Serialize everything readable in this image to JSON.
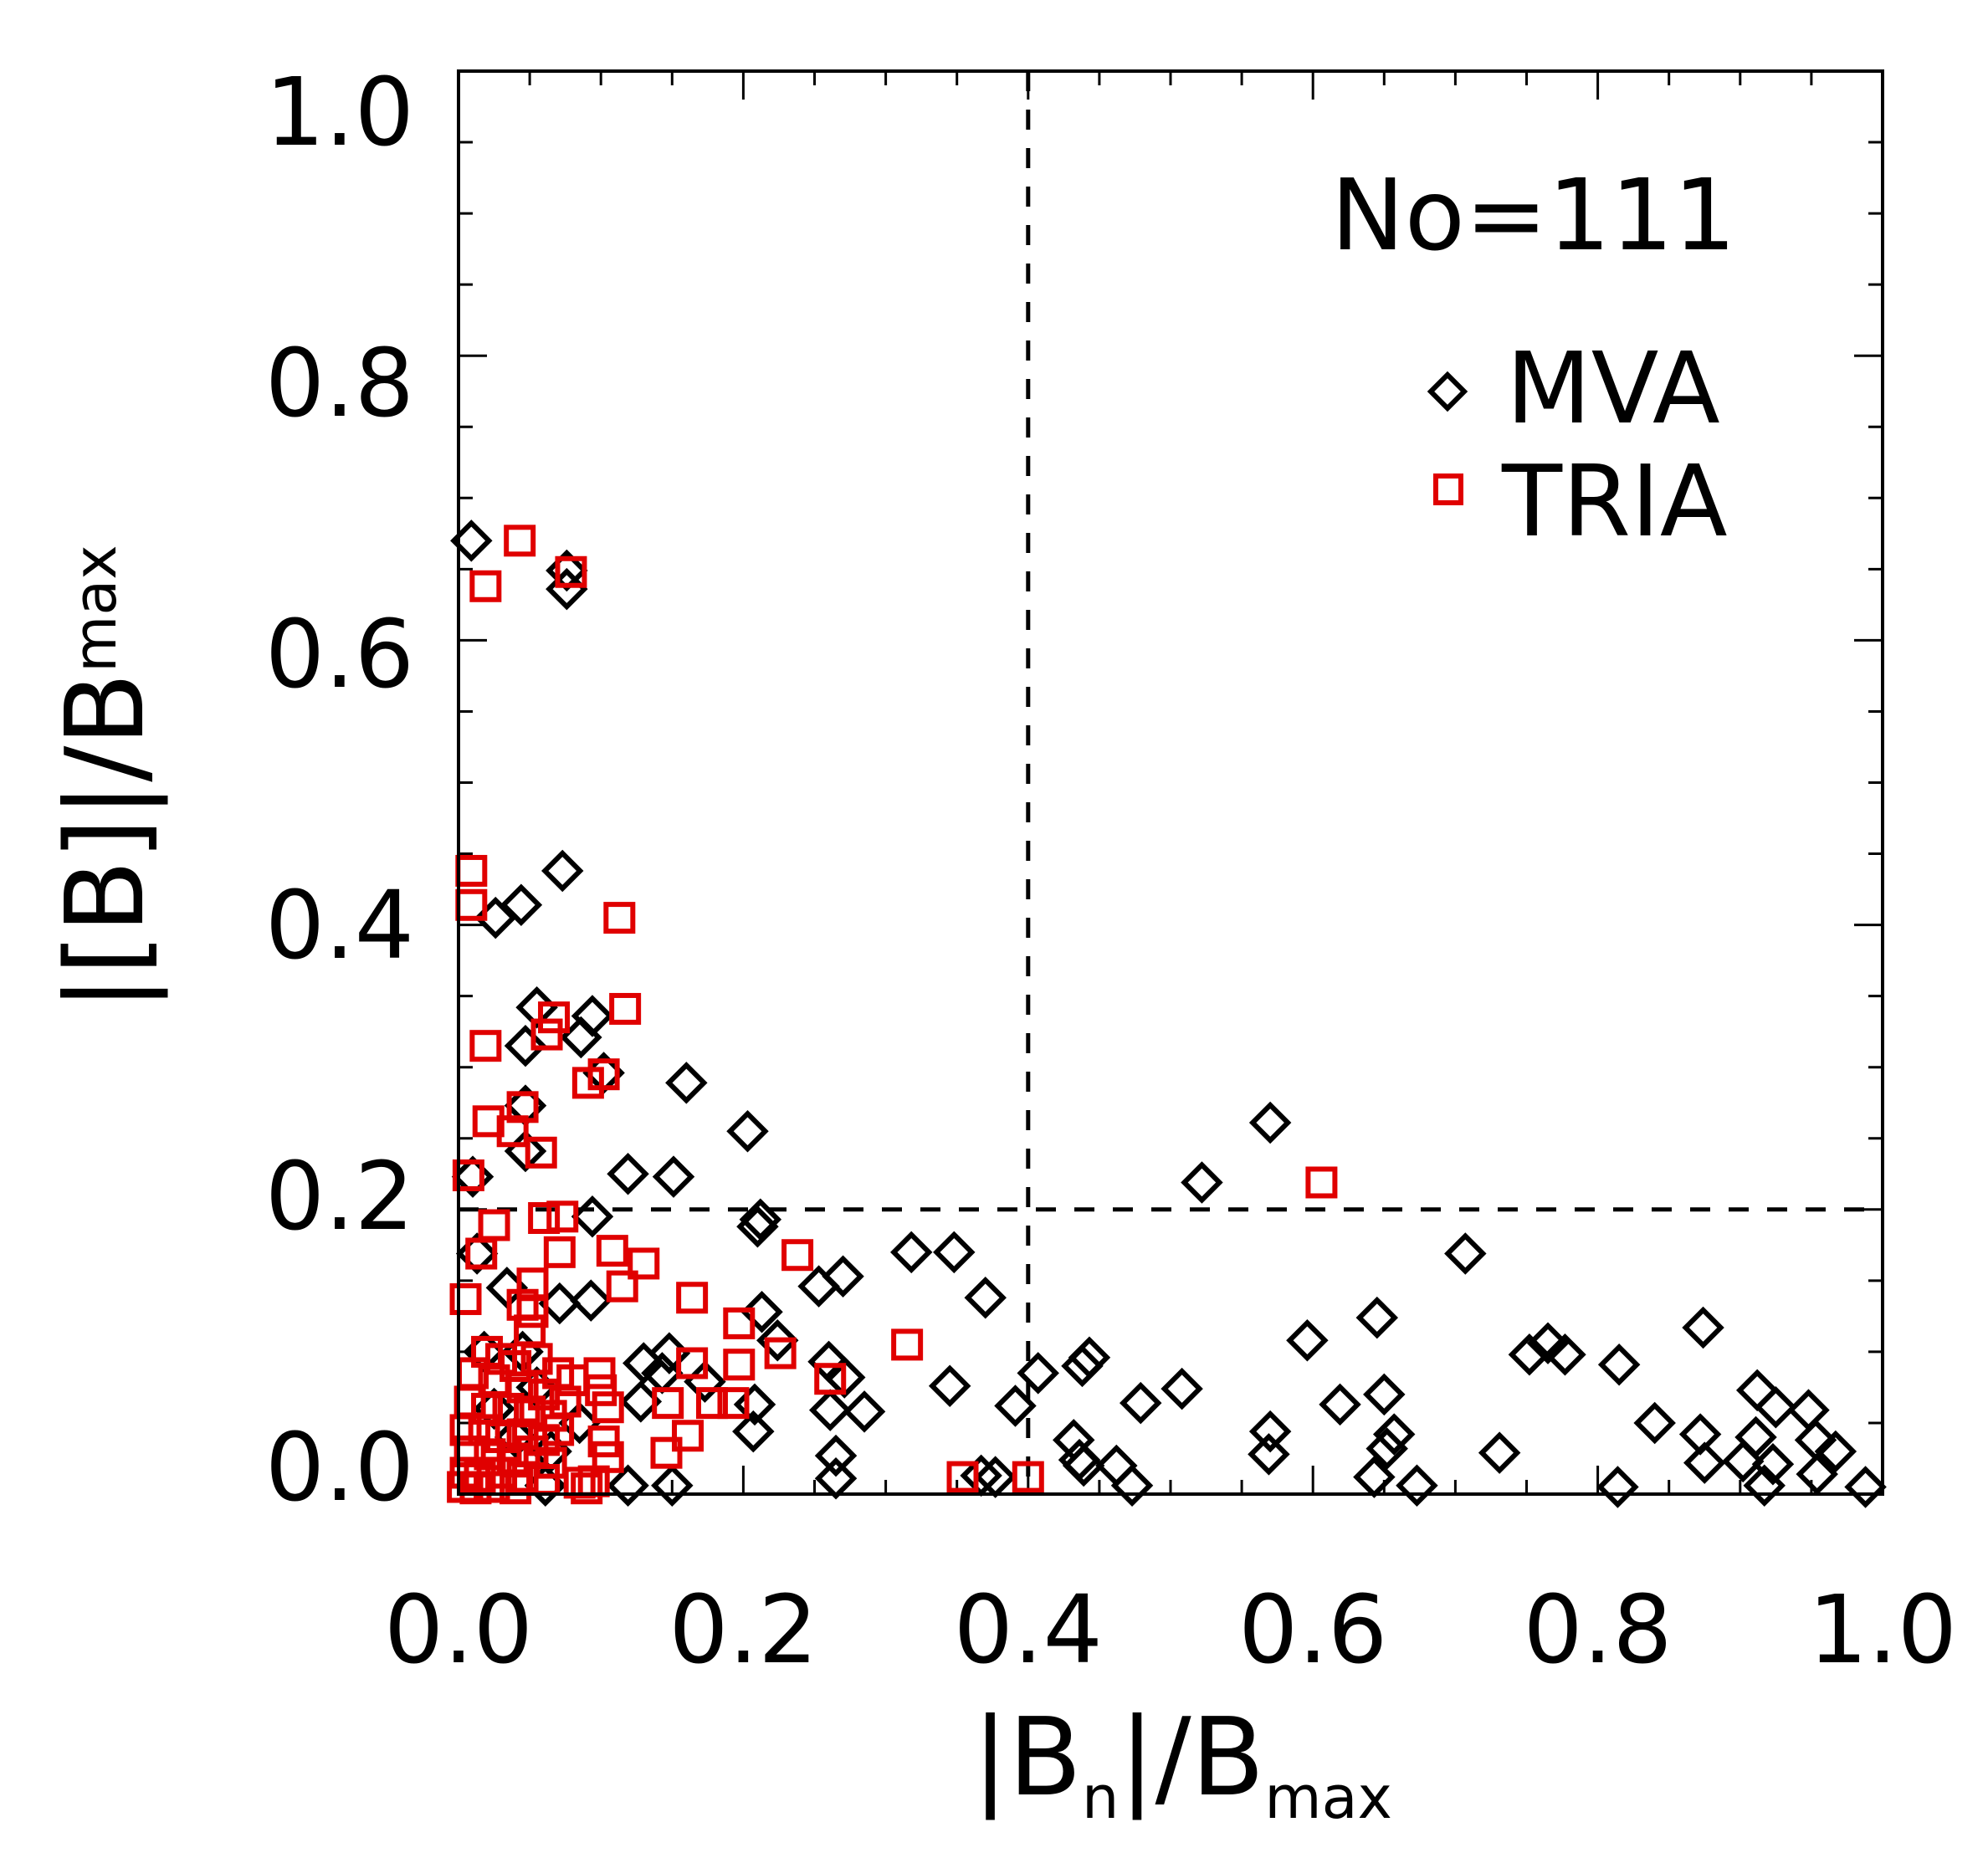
{
  "chart_data": {
    "type": "scatter",
    "title": "",
    "xlabel": "|B_n|/B_max",
    "xlabel_parts": {
      "pre": "|B",
      "sub1": "n",
      "mid": "|/B",
      "sub2": "max"
    },
    "ylabel": "|[B]|/B_max",
    "ylabel_parts": {
      "pre": "|[B]|/B",
      "sub": "max"
    },
    "xlim": [
      0.0,
      1.0
    ],
    "ylim": [
      0.0,
      1.0
    ],
    "xticks": [
      "0.0",
      "0.2",
      "0.4",
      "0.6",
      "0.8",
      "1.0"
    ],
    "yticks": [
      "0.0",
      "0.2",
      "0.4",
      "0.6",
      "0.8",
      "1.0"
    ],
    "xtick_values": [
      0.0,
      0.2,
      0.4,
      0.6,
      0.8,
      1.0
    ],
    "ytick_values": [
      0.0,
      0.2,
      0.4,
      0.6,
      0.8,
      1.0
    ],
    "minor_tick_step": 0.05,
    "grid": false,
    "reference_lines": [
      {
        "orientation": "vertical",
        "value": 0.4,
        "style": "dashed"
      },
      {
        "orientation": "horizontal",
        "value": 0.2,
        "style": "dashed",
        "from_x": 0.0,
        "to_x": 1.0
      }
    ],
    "annotation": "No=111",
    "legend": {
      "placement": "top-right",
      "entries": [
        {
          "label": "MVA",
          "marker": "diamond",
          "color": "#000000"
        },
        {
          "label": "TRIA",
          "marker": "square",
          "color": "#e00000"
        }
      ]
    },
    "series": [
      {
        "name": "MVA",
        "marker": "diamond",
        "color": "#000000",
        "points": [
          [
            0.009,
            0.67
          ],
          [
            0.076,
            0.649
          ],
          [
            0.076,
            0.636
          ],
          [
            0.073,
            0.438
          ],
          [
            0.044,
            0.414
          ],
          [
            0.026,
            0.405
          ],
          [
            0.055,
            0.342
          ],
          [
            0.094,
            0.336
          ],
          [
            0.086,
            0.321
          ],
          [
            0.047,
            0.315
          ],
          [
            0.102,
            0.296
          ],
          [
            0.16,
            0.289
          ],
          [
            0.047,
            0.273
          ],
          [
            0.047,
            0.241
          ],
          [
            0.203,
            0.255
          ],
          [
            0.01,
            0.223
          ],
          [
            0.119,
            0.225
          ],
          [
            0.151,
            0.223
          ],
          [
            0.094,
            0.195
          ],
          [
            0.212,
            0.193
          ],
          [
            0.21,
            0.188
          ],
          [
            0.013,
            0.169
          ],
          [
            0.034,
            0.145
          ],
          [
            0.071,
            0.134
          ],
          [
            0.093,
            0.136
          ],
          [
            0.57,
            0.261
          ],
          [
            0.522,
            0.219
          ],
          [
            0.318,
            0.17
          ],
          [
            0.348,
            0.17
          ],
          [
            0.27,
            0.153
          ],
          [
            0.253,
            0.146
          ],
          [
            0.37,
            0.138
          ],
          [
            0.213,
            0.128
          ],
          [
            0.224,
            0.108
          ],
          [
            0.26,
            0.093
          ],
          [
            0.271,
            0.082
          ],
          [
            0.261,
            0.059
          ],
          [
            0.285,
            0.058
          ],
          [
            0.208,
            0.063
          ],
          [
            0.207,
            0.044
          ],
          [
            0.265,
            0.027
          ],
          [
            0.265,
            0.011
          ],
          [
            0.345,
            0.076
          ],
          [
            0.391,
            0.062
          ],
          [
            0.367,
            0.013
          ],
          [
            0.377,
            0.012
          ],
          [
            0.13,
            0.092
          ],
          [
            0.148,
            0.099
          ],
          [
            0.143,
            0.085
          ],
          [
            0.173,
            0.079
          ],
          [
            0.128,
            0.065
          ],
          [
            0.15,
            0.006
          ],
          [
            0.119,
            0.006
          ],
          [
            0.061,
            0.006
          ],
          [
            0.04,
            0.04
          ],
          [
            0.065,
            0.03
          ],
          [
            0.025,
            0.06
          ],
          [
            0.055,
            0.075
          ],
          [
            0.085,
            0.05
          ],
          [
            0.018,
            0.1
          ],
          [
            0.045,
            0.1
          ],
          [
            0.707,
            0.169
          ],
          [
            0.645,
            0.124
          ],
          [
            0.596,
            0.108
          ],
          [
            0.407,
            0.085
          ],
          [
            0.443,
            0.096
          ],
          [
            0.438,
            0.09
          ],
          [
            0.479,
            0.064
          ],
          [
            0.508,
            0.074
          ],
          [
            0.619,
            0.063
          ],
          [
            0.65,
            0.07
          ],
          [
            0.57,
            0.044
          ],
          [
            0.569,
            0.028
          ],
          [
            0.657,
            0.042
          ],
          [
            0.652,
            0.032
          ],
          [
            0.432,
            0.038
          ],
          [
            0.436,
            0.024
          ],
          [
            0.439,
            0.02
          ],
          [
            0.462,
            0.02
          ],
          [
            0.473,
            0.006
          ],
          [
            0.643,
            0.012
          ],
          [
            0.673,
            0.006
          ],
          [
            0.731,
            0.029
          ],
          [
            0.752,
            0.098
          ],
          [
            0.765,
            0.106
          ],
          [
            0.777,
            0.098
          ],
          [
            0.815,
            0.091
          ],
          [
            0.874,
            0.117
          ],
          [
            0.814,
            0.005
          ],
          [
            0.84,
            0.05
          ],
          [
            0.872,
            0.042
          ],
          [
            0.875,
            0.022
          ],
          [
            0.912,
            0.073
          ],
          [
            0.925,
            0.061
          ],
          [
            0.948,
            0.059
          ],
          [
            0.911,
            0.04
          ],
          [
            0.902,
            0.023
          ],
          [
            0.923,
            0.021
          ],
          [
            0.917,
            0.006
          ],
          [
            0.953,
            0.038
          ],
          [
            0.967,
            0.03
          ],
          [
            0.954,
            0.014
          ],
          [
            0.988,
            0.005
          ]
        ]
      },
      {
        "name": "TRIA",
        "marker": "square",
        "color": "#e00000",
        "points": [
          [
            0.043,
            0.67
          ],
          [
            0.019,
            0.638
          ],
          [
            0.079,
            0.648
          ],
          [
            0.009,
            0.438
          ],
          [
            0.009,
            0.414
          ],
          [
            0.113,
            0.405
          ],
          [
            0.067,
            0.335
          ],
          [
            0.062,
            0.323
          ],
          [
            0.117,
            0.341
          ],
          [
            0.019,
            0.315
          ],
          [
            0.091,
            0.289
          ],
          [
            0.102,
            0.295
          ],
          [
            0.045,
            0.272
          ],
          [
            0.021,
            0.262
          ],
          [
            0.038,
            0.255
          ],
          [
            0.058,
            0.24
          ],
          [
            0.007,
            0.224
          ],
          [
            0.06,
            0.194
          ],
          [
            0.073,
            0.195
          ],
          [
            0.025,
            0.189
          ],
          [
            0.016,
            0.169
          ],
          [
            0.071,
            0.17
          ],
          [
            0.108,
            0.171
          ],
          [
            0.13,
            0.162
          ],
          [
            0.238,
            0.168
          ],
          [
            0.052,
            0.148
          ],
          [
            0.005,
            0.137
          ],
          [
            0.115,
            0.146
          ],
          [
            0.045,
            0.133
          ],
          [
            0.052,
            0.128
          ],
          [
            0.05,
            0.115
          ],
          [
            0.164,
            0.138
          ],
          [
            0.197,
            0.12
          ],
          [
            0.226,
            0.099
          ],
          [
            0.315,
            0.105
          ],
          [
            0.164,
            0.092
          ],
          [
            0.197,
            0.091
          ],
          [
            0.261,
            0.081
          ],
          [
            0.147,
            0.064
          ],
          [
            0.178,
            0.064
          ],
          [
            0.193,
            0.064
          ],
          [
            0.161,
            0.041
          ],
          [
            0.146,
            0.029
          ],
          [
            0.606,
            0.219
          ],
          [
            0.1,
            0.073
          ],
          [
            0.099,
            0.085
          ],
          [
            0.105,
            0.061
          ],
          [
            0.102,
            0.037
          ],
          [
            0.105,
            0.026
          ],
          [
            0.095,
            0.009
          ],
          [
            0.085,
            0.008
          ],
          [
            0.354,
            0.012
          ],
          [
            0.4,
            0.012
          ],
          [
            0.02,
            0.1
          ],
          [
            0.03,
            0.095
          ],
          [
            0.04,
            0.09
          ],
          [
            0.055,
            0.095
          ],
          [
            0.07,
            0.085
          ],
          [
            0.08,
            0.08
          ],
          [
            0.01,
            0.085
          ],
          [
            0.025,
            0.08
          ],
          [
            0.045,
            0.075
          ],
          [
            0.06,
            0.07
          ],
          [
            0.075,
            0.065
          ],
          [
            0.008,
            0.065
          ],
          [
            0.02,
            0.06
          ],
          [
            0.035,
            0.06
          ],
          [
            0.05,
            0.058
          ],
          [
            0.065,
            0.055
          ],
          [
            0.005,
            0.045
          ],
          [
            0.018,
            0.045
          ],
          [
            0.03,
            0.04
          ],
          [
            0.045,
            0.042
          ],
          [
            0.06,
            0.038
          ],
          [
            0.07,
            0.045
          ],
          [
            0.008,
            0.03
          ],
          [
            0.022,
            0.028
          ],
          [
            0.038,
            0.025
          ],
          [
            0.052,
            0.03
          ],
          [
            0.065,
            0.022
          ],
          [
            0.005,
            0.015
          ],
          [
            0.015,
            0.012
          ],
          [
            0.03,
            0.015
          ],
          [
            0.045,
            0.012
          ],
          [
            0.06,
            0.01
          ],
          [
            0.003,
            0.005
          ],
          [
            0.012,
            0.004
          ],
          [
            0.025,
            0.005
          ],
          [
            0.04,
            0.004
          ],
          [
            0.09,
            0.004
          ]
        ]
      }
    ]
  }
}
